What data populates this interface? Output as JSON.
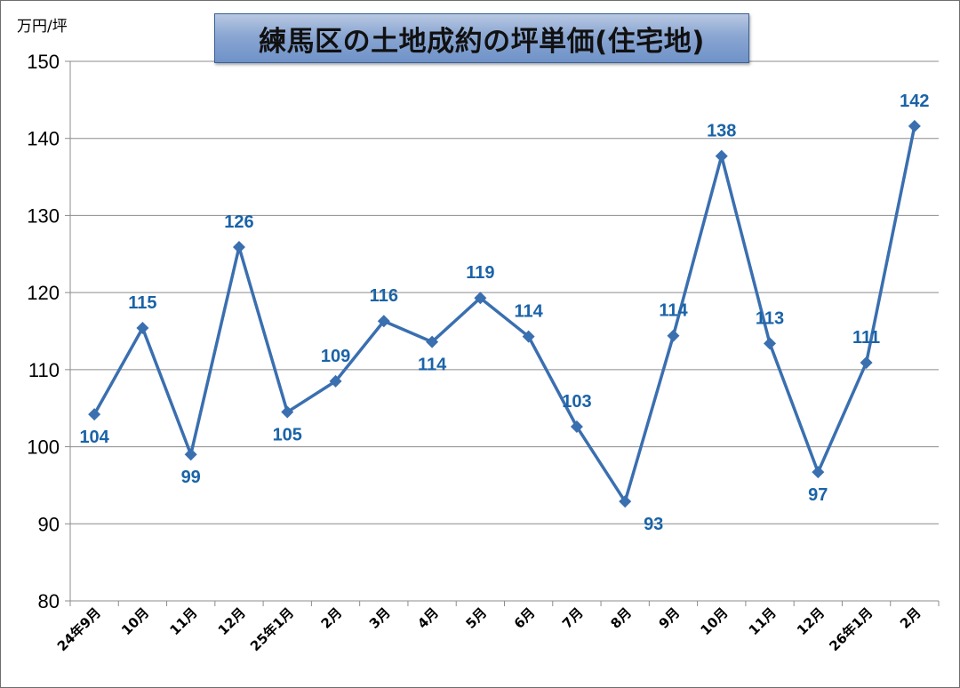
{
  "chart_data": {
    "type": "line",
    "title": "練馬区の土地成約の坪単価(住宅地)",
    "ylabel": "万円/坪",
    "xlabel": "",
    "ylim": [
      80,
      150
    ],
    "yticks": [
      80,
      90,
      100,
      110,
      120,
      130,
      140,
      150
    ],
    "grid": true,
    "categories": [
      "24年9月",
      "10月",
      "11月",
      "12月",
      "25年1月",
      "2月",
      "3月",
      "4月",
      "5月",
      "6月",
      "7月",
      "8月",
      "9月",
      "10月",
      "11月",
      "12月",
      "26年1月",
      "2月"
    ],
    "series": [
      {
        "values": [
          104.2,
          115.4,
          99.0,
          125.9,
          104.5,
          108.5,
          116.3,
          113.6,
          119.3,
          114.3,
          102.6,
          92.9,
          114.4,
          137.7,
          113.4,
          96.7,
          110.9,
          141.6
        ],
        "labels": [
          "104",
          "115",
          "99",
          "126",
          "105",
          "109",
          "116",
          "114",
          "119",
          "114",
          "103",
          "93",
          "114",
          "138",
          "113",
          "97",
          "111",
          "142"
        ],
        "color": "#3a6fb0"
      }
    ],
    "label_color": "#1a63a8"
  }
}
